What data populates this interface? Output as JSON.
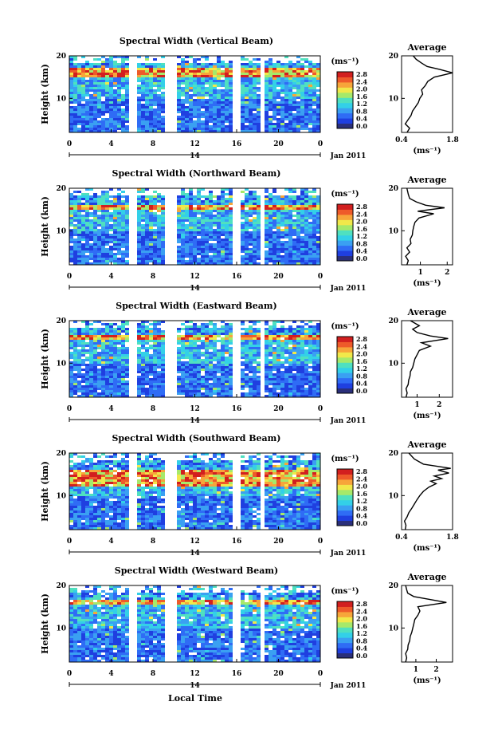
{
  "figure": {
    "time_axis_label": "Local Time",
    "date_label": "Jan 2011",
    "day_label": "14",
    "height_axis_label": "Height (km)",
    "colorbar_unit": "(ms⁻¹)",
    "average_title": "Average",
    "average_unit": "(ms⁻¹)"
  },
  "colors": {
    "colormap": [
      "#2a2f7a",
      "#1f3fe0",
      "#2f6cf5",
      "#3aa0f2",
      "#33d0e8",
      "#4fe0c0",
      "#a6e96a",
      "#f1e84a",
      "#f7a53a",
      "#ee5a2a",
      "#d21f1f"
    ],
    "background": "#ffffff",
    "line": "#000000"
  },
  "chart_data": [
    {
      "type": "heatmap",
      "title": "Spectral Width (Vertical Beam)",
      "xlabel": "",
      "ylabel": "Height (km)",
      "x_ticks": [
        "0",
        "4",
        "8",
        "12",
        "16",
        "20",
        "0"
      ],
      "y_ticks": [
        "10",
        "20"
      ],
      "ylim": [
        2,
        20
      ],
      "colorbar_ticks": [
        "0.0",
        "0.4",
        "0.8",
        "1.2",
        "1.6",
        "2.0",
        "2.4",
        "2.8"
      ],
      "data_gaps_hours": [
        [
          5.6,
          6.2
        ],
        [
          8.8,
          10.1
        ],
        [
          15.6,
          16.1
        ],
        [
          18.0,
          18.4
        ]
      ],
      "enhanced_layer_km": [
        15.4,
        17.2
      ],
      "profile": {
        "title": "Average",
        "xlabel": "(ms⁻¹)",
        "x_ticks": [
          "0.4",
          "1.8"
        ],
        "xlim": [
          0.4,
          1.8
        ],
        "y_ticks": [
          "10",
          "20"
        ],
        "ylim": [
          2,
          20
        ],
        "points": [
          [
            0.55,
            2
          ],
          [
            0.62,
            3
          ],
          [
            0.5,
            4
          ],
          [
            0.58,
            5
          ],
          [
            0.66,
            6
          ],
          [
            0.7,
            7
          ],
          [
            0.78,
            8
          ],
          [
            0.86,
            9
          ],
          [
            0.9,
            10
          ],
          [
            0.98,
            11
          ],
          [
            0.95,
            12
          ],
          [
            1.05,
            13
          ],
          [
            1.12,
            14
          ],
          [
            1.3,
            15
          ],
          [
            1.8,
            16
          ],
          [
            1.45,
            16.8
          ],
          [
            1.1,
            17.5
          ],
          [
            0.95,
            18.3
          ],
          [
            0.8,
            19.2
          ],
          [
            0.72,
            20
          ]
        ]
      }
    },
    {
      "type": "heatmap",
      "title": "Spectral Width (Northward Beam)",
      "xlabel": "",
      "ylabel": "Height (km)",
      "x_ticks": [
        "0",
        "4",
        "8",
        "12",
        "16",
        "20",
        "0"
      ],
      "y_ticks": [
        "10",
        "20"
      ],
      "ylim": [
        2,
        20
      ],
      "colorbar_ticks": [
        "0.0",
        "0.4",
        "0.8",
        "1.2",
        "1.6",
        "2.0",
        "2.4",
        "2.8"
      ],
      "data_gaps_hours": [
        [
          5.6,
          6.2
        ],
        [
          8.8,
          10.1
        ],
        [
          15.6,
          16.1
        ],
        [
          18.0,
          18.4
        ]
      ],
      "enhanced_layer_km": [
        15.0,
        16.6
      ],
      "profile": {
        "title": "Average",
        "xlabel": "(ms⁻¹)",
        "x_ticks": [
          "1",
          "2"
        ],
        "xlim": [
          0.3,
          2.2
        ],
        "y_ticks": [
          "10",
          "20"
        ],
        "ylim": [
          2,
          20
        ],
        "points": [
          [
            0.5,
            2
          ],
          [
            0.55,
            3
          ],
          [
            0.45,
            4
          ],
          [
            0.6,
            5
          ],
          [
            0.5,
            6
          ],
          [
            0.65,
            7
          ],
          [
            0.62,
            8
          ],
          [
            0.7,
            9
          ],
          [
            0.72,
            10
          ],
          [
            0.75,
            11
          ],
          [
            0.8,
            12
          ],
          [
            0.95,
            13
          ],
          [
            1.5,
            14
          ],
          [
            0.9,
            14.6
          ],
          [
            1.9,
            15.4
          ],
          [
            1.2,
            16
          ],
          [
            0.85,
            16.8
          ],
          [
            0.6,
            17.6
          ],
          [
            0.55,
            18.6
          ],
          [
            0.5,
            20
          ]
        ]
      }
    },
    {
      "type": "heatmap",
      "title": "Spectral Width (Eastward Beam)",
      "xlabel": "",
      "ylabel": "Height (km)",
      "x_ticks": [
        "0",
        "4",
        "8",
        "12",
        "16",
        "20",
        "0"
      ],
      "y_ticks": [
        "10",
        "20"
      ],
      "ylim": [
        2,
        20
      ],
      "colorbar_ticks": [
        "0.0",
        "0.4",
        "0.8",
        "1.2",
        "1.6",
        "2.0",
        "2.4",
        "2.8"
      ],
      "data_gaps_hours": [
        [
          5.6,
          6.2
        ],
        [
          8.8,
          10.1
        ],
        [
          15.6,
          16.1
        ],
        [
          18.0,
          18.4
        ]
      ],
      "enhanced_layer_km": [
        15.6,
        16.8
      ],
      "profile": {
        "title": "Average",
        "xlabel": "(ms⁻¹)",
        "x_ticks": [
          "1",
          "2"
        ],
        "xlim": [
          0.3,
          2.6
        ],
        "y_ticks": [
          "10",
          "20"
        ],
        "ylim": [
          2,
          20
        ],
        "points": [
          [
            0.5,
            2
          ],
          [
            0.55,
            3
          ],
          [
            0.5,
            4
          ],
          [
            0.6,
            5
          ],
          [
            0.62,
            6
          ],
          [
            0.68,
            7
          ],
          [
            0.7,
            8
          ],
          [
            0.8,
            9
          ],
          [
            0.85,
            10
          ],
          [
            0.9,
            11
          ],
          [
            1.0,
            12
          ],
          [
            1.1,
            13
          ],
          [
            1.6,
            14
          ],
          [
            1.2,
            14.8
          ],
          [
            2.4,
            15.8
          ],
          [
            1.6,
            16.4
          ],
          [
            1.0,
            17.2
          ],
          [
            0.8,
            18
          ],
          [
            1.1,
            18.8
          ],
          [
            0.7,
            20
          ]
        ]
      }
    },
    {
      "type": "heatmap",
      "title": "Spectral Width (Southward Beam)",
      "xlabel": "",
      "ylabel": "Height (km)",
      "x_ticks": [
        "0",
        "4",
        "8",
        "12",
        "16",
        "20",
        "0"
      ],
      "y_ticks": [
        "10",
        "20"
      ],
      "ylim": [
        2,
        20
      ],
      "colorbar_ticks": [
        "0.0",
        "0.4",
        "0.8",
        "1.2",
        "1.6",
        "2.0",
        "2.4",
        "2.8"
      ],
      "data_gaps_hours": [
        [
          5.6,
          6.2
        ],
        [
          8.8,
          10.1
        ],
        [
          15.6,
          16.1
        ],
        [
          18.0,
          18.4
        ]
      ],
      "enhanced_layer_km": [
        12.5,
        16.5
      ],
      "profile": {
        "title": "Average",
        "xlabel": "(ms⁻¹)",
        "x_ticks": [
          "0.4",
          "1.8"
        ],
        "xlim": [
          0.4,
          1.8
        ],
        "y_ticks": [
          "10",
          "20"
        ],
        "ylim": [
          2,
          20
        ],
        "points": [
          [
            0.5,
            2
          ],
          [
            0.52,
            3
          ],
          [
            0.48,
            4
          ],
          [
            0.55,
            5
          ],
          [
            0.6,
            6
          ],
          [
            0.68,
            7
          ],
          [
            0.75,
            8
          ],
          [
            0.82,
            9
          ],
          [
            0.9,
            10
          ],
          [
            1.0,
            11
          ],
          [
            1.15,
            12
          ],
          [
            1.35,
            12.8
          ],
          [
            1.2,
            13.4
          ],
          [
            1.5,
            14
          ],
          [
            1.3,
            14.6
          ],
          [
            1.7,
            15.3
          ],
          [
            1.4,
            16
          ],
          [
            1.75,
            16.4
          ],
          [
            1.0,
            17.4
          ],
          [
            0.75,
            18.6
          ],
          [
            0.6,
            20
          ]
        ]
      }
    },
    {
      "type": "heatmap",
      "title": "Spectral Width (Westward Beam)",
      "xlabel": "Local Time",
      "ylabel": "Height (km)",
      "x_ticks": [
        "0",
        "4",
        "8",
        "12",
        "16",
        "20",
        "0"
      ],
      "y_ticks": [
        "10",
        "20"
      ],
      "ylim": [
        2,
        20
      ],
      "colorbar_ticks": [
        "0.0",
        "0.4",
        "0.8",
        "1.2",
        "1.6",
        "2.0",
        "2.4",
        "2.8"
      ],
      "data_gaps_hours": [
        [
          5.6,
          6.2
        ],
        [
          8.8,
          10.1
        ],
        [
          15.6,
          16.1
        ],
        [
          18.0,
          18.4
        ]
      ],
      "enhanced_layer_km": [
        15.6,
        17.0
      ],
      "profile": {
        "title": "Average",
        "xlabel": "(ms⁻¹)",
        "x_ticks": [
          "1",
          "2"
        ],
        "xlim": [
          0.3,
          2.8
        ],
        "y_ticks": [
          "10",
          "20"
        ],
        "ylim": [
          2,
          20
        ],
        "points": [
          [
            0.5,
            2
          ],
          [
            0.55,
            3
          ],
          [
            0.5,
            4
          ],
          [
            0.6,
            5
          ],
          [
            0.62,
            6
          ],
          [
            0.7,
            7
          ],
          [
            0.72,
            8
          ],
          [
            0.8,
            9
          ],
          [
            0.85,
            10
          ],
          [
            0.9,
            11
          ],
          [
            0.95,
            12
          ],
          [
            1.1,
            13
          ],
          [
            1.2,
            14
          ],
          [
            1.1,
            15
          ],
          [
            2.5,
            16
          ],
          [
            1.8,
            16.6
          ],
          [
            0.9,
            17.4
          ],
          [
            0.6,
            18.2
          ],
          [
            0.55,
            19
          ],
          [
            0.5,
            20
          ]
        ]
      }
    }
  ]
}
